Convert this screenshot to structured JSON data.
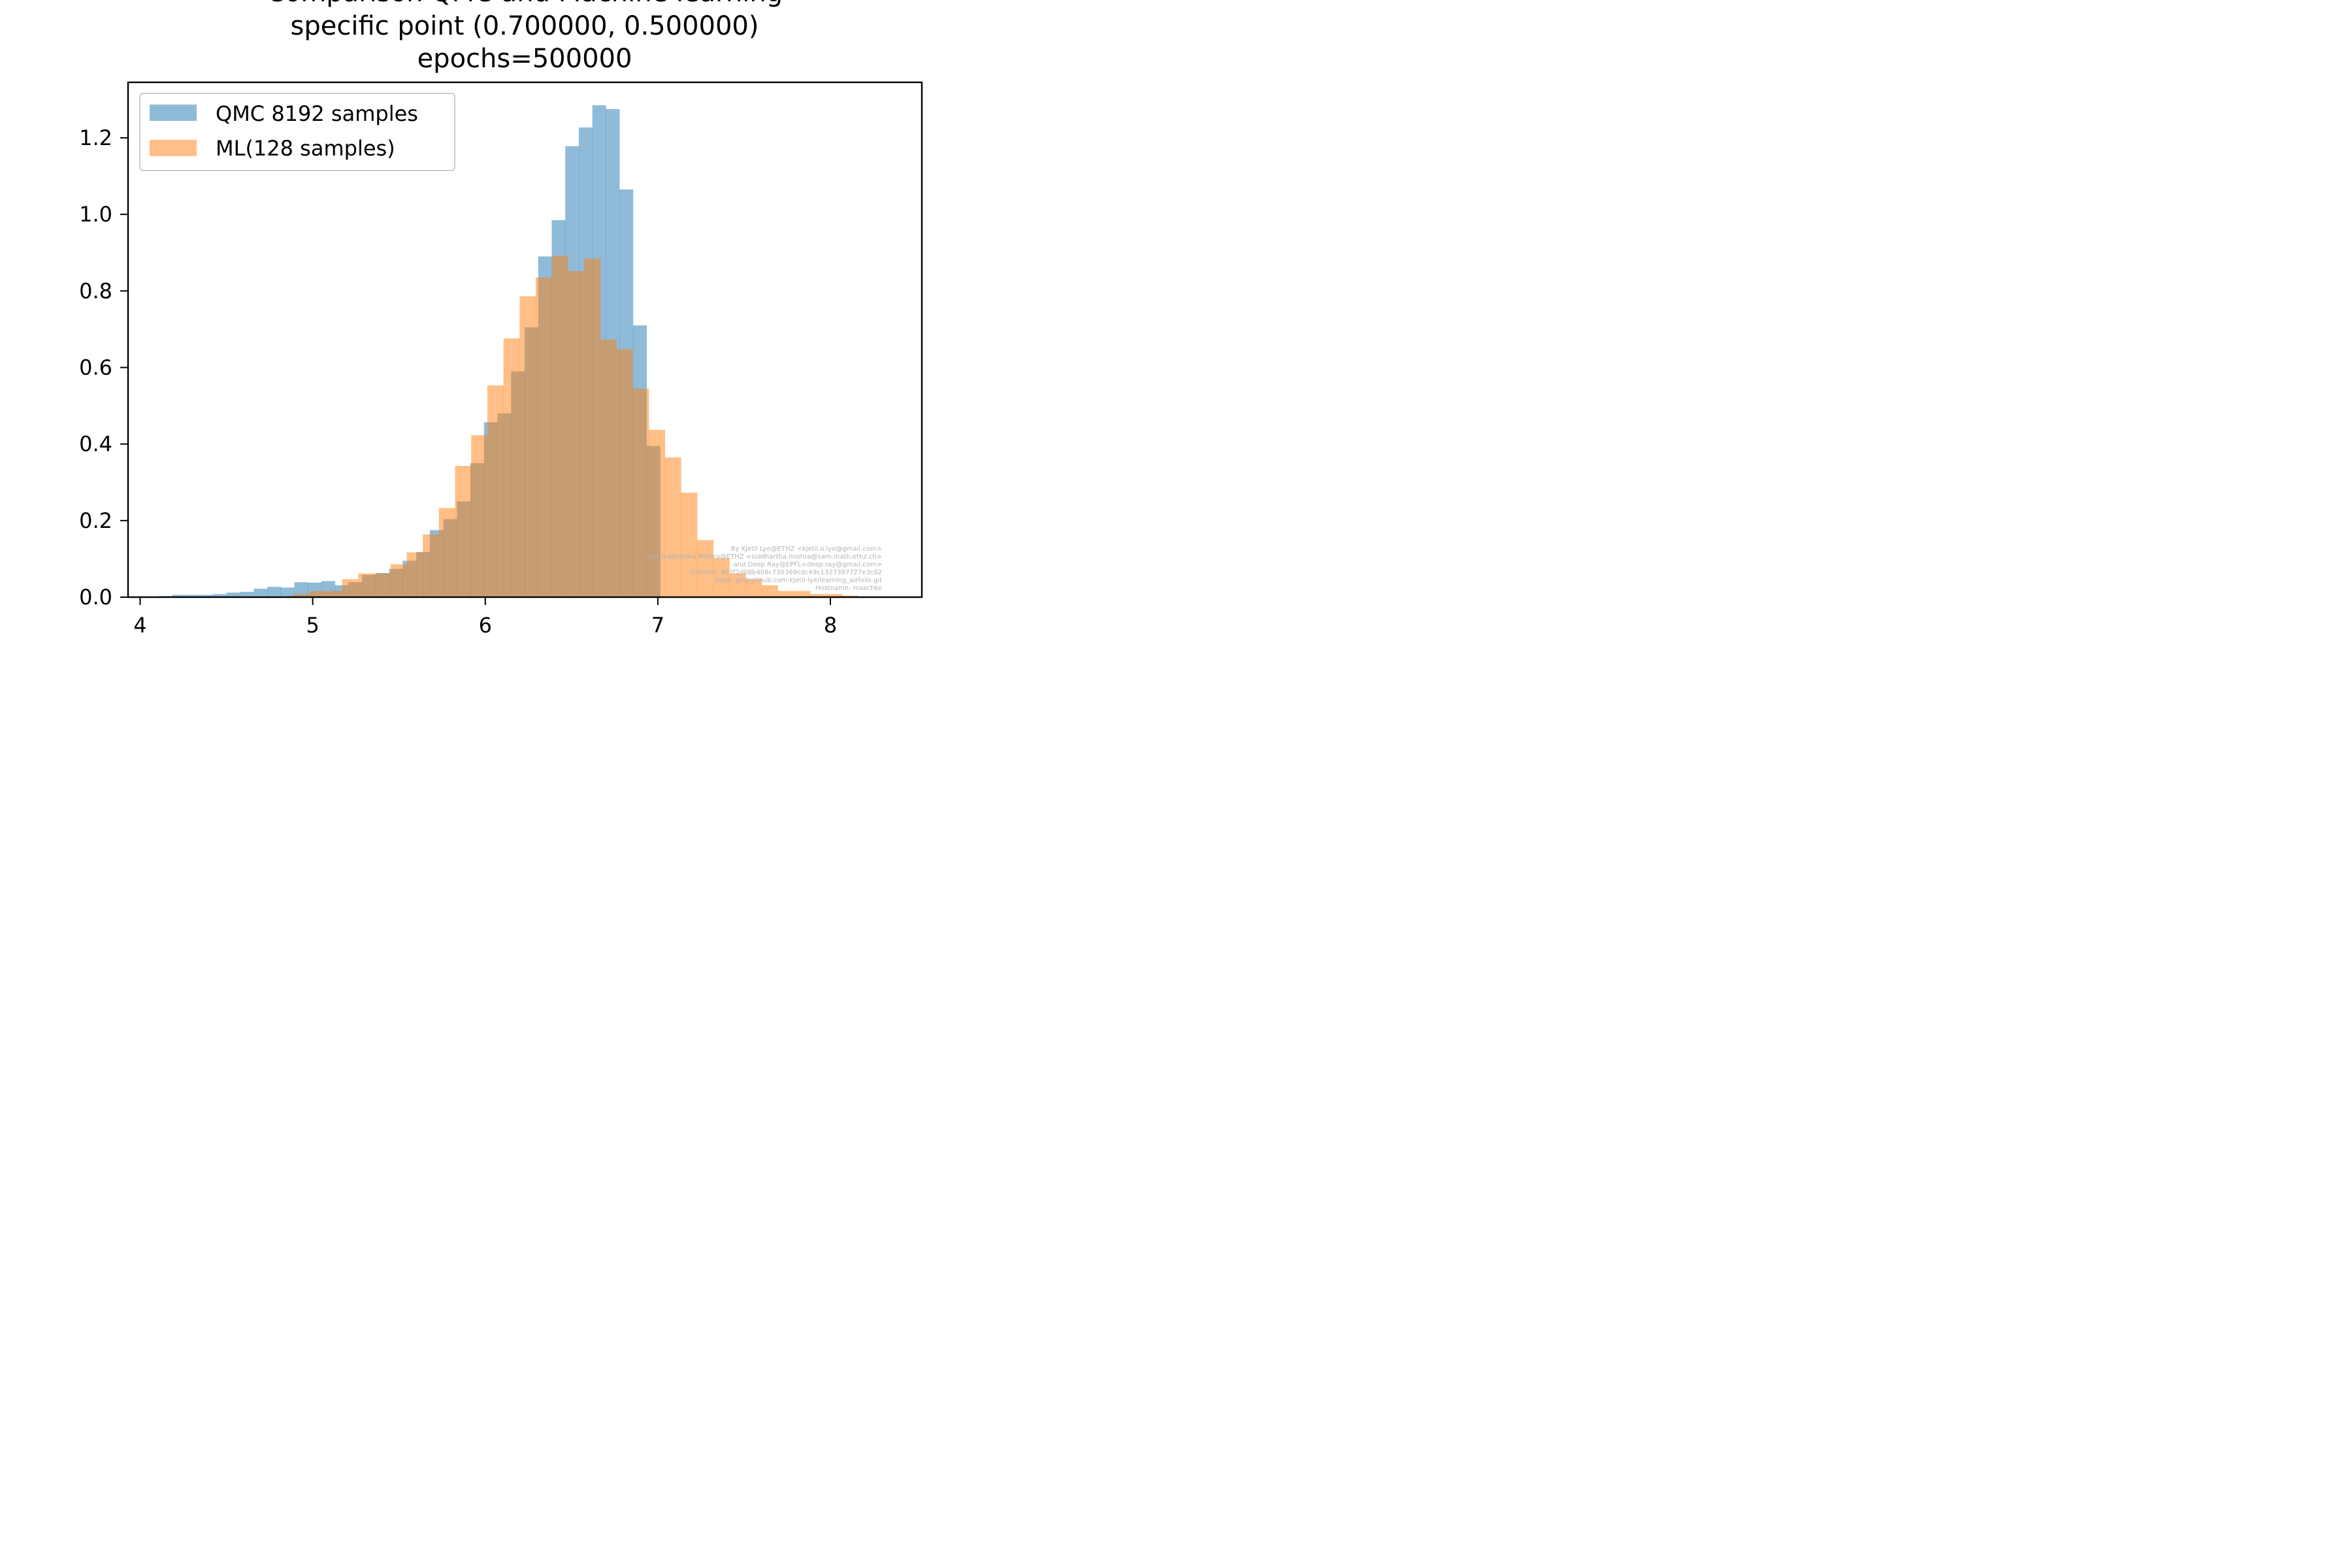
{
  "chart_data": {
    "type": "histogram",
    "title_lines": [
      "Comparison QMC and Machine learning",
      "specific point  (0.700000, 0.500000)",
      "epochs=500000"
    ],
    "xlabel": "",
    "ylabel": "",
    "xlim": [
      3.93,
      8.53
    ],
    "ylim": [
      0.0,
      1.345
    ],
    "x_ticks": [
      4,
      5,
      6,
      7,
      8
    ],
    "x_tick_labels": [
      "4",
      "5",
      "6",
      "7",
      "8"
    ],
    "y_ticks": [
      0.0,
      0.2,
      0.4,
      0.6,
      0.8,
      1.0,
      1.2
    ],
    "y_tick_labels": [
      "0.0",
      "0.2",
      "0.4",
      "0.6",
      "0.8",
      "1.0",
      "1.2"
    ],
    "grid": false,
    "legend_position": "upper-left",
    "series": [
      {
        "name": "QMC 8192 samples",
        "color": "#1f77b4",
        "alpha": 0.5,
        "bin_start": 4.03,
        "bin_width": 0.0785,
        "values": [
          0.0,
          0.003,
          0.006,
          0.006,
          0.006,
          0.008,
          0.012,
          0.014,
          0.022,
          0.027,
          0.025,
          0.039,
          0.038,
          0.042,
          0.031,
          0.039,
          0.058,
          0.063,
          0.074,
          0.095,
          0.118,
          0.175,
          0.204,
          0.25,
          0.35,
          0.457,
          0.48,
          0.59,
          0.705,
          0.89,
          0.985,
          1.178,
          1.227,
          1.285,
          1.275,
          1.065,
          0.71,
          0.395,
          0.0
        ]
      },
      {
        "name": "ML(128 samples)",
        "color": "#ff7f0e",
        "alpha": 0.5,
        "bin_start": 4.89,
        "bin_width": 0.0935,
        "values": [
          0.008,
          0.016,
          0.016,
          0.047,
          0.062,
          0.062,
          0.086,
          0.117,
          0.164,
          0.233,
          0.343,
          0.423,
          0.553,
          0.676,
          0.786,
          0.835,
          0.892,
          0.852,
          0.885,
          0.673,
          0.648,
          0.545,
          0.437,
          0.365,
          0.273,
          0.149,
          0.102,
          0.062,
          0.047,
          0.031,
          0.016,
          0.016,
          0.008,
          0.008,
          0.004
        ]
      }
    ]
  },
  "watermark_lines": [
    "By Kjetil Lye@ETHZ <kjetil.o.lye@gmail.com>",
    "and Siddhartha Mishra@ETHZ <siddhartha.mishra@sam.math.ethz.ch>",
    "and Deep Ray@EPFL<deep.ray@gmail.com>",
    "Commit: 903f2d08b408c730369cdc49c1327397727e3c02",
    "Repo: git@github.com:kjetil-lye/learning_airfoils.git",
    "Hostname: maschke"
  ]
}
